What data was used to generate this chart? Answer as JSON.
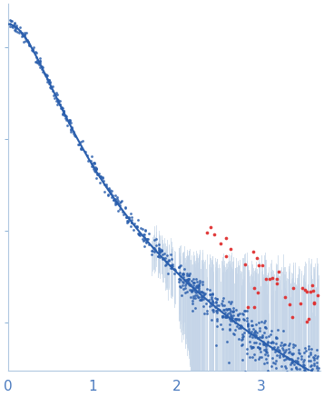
{
  "title": "",
  "xlabel": "",
  "ylabel": "",
  "xlim": [
    0,
    3.7
  ],
  "y_min": 0.0003,
  "y_max": 3.0,
  "x_tick_labels": [
    "0",
    "1",
    "2",
    "3"
  ],
  "x_tick_positions": [
    0,
    1,
    2,
    3
  ],
  "bg_color": "#ffffff",
  "curve_color": "#2b5fad",
  "scatter_color": "#2b5fad",
  "outlier_color": "#e03030",
  "error_color": "#c5d5e8",
  "scatter_size": 4,
  "outlier_size": 7,
  "curve_linewidth": 1.5,
  "n_curve_points": 400,
  "I0": 1.8,
  "q_scale": 0.5,
  "power": 2.2,
  "seed": 42
}
